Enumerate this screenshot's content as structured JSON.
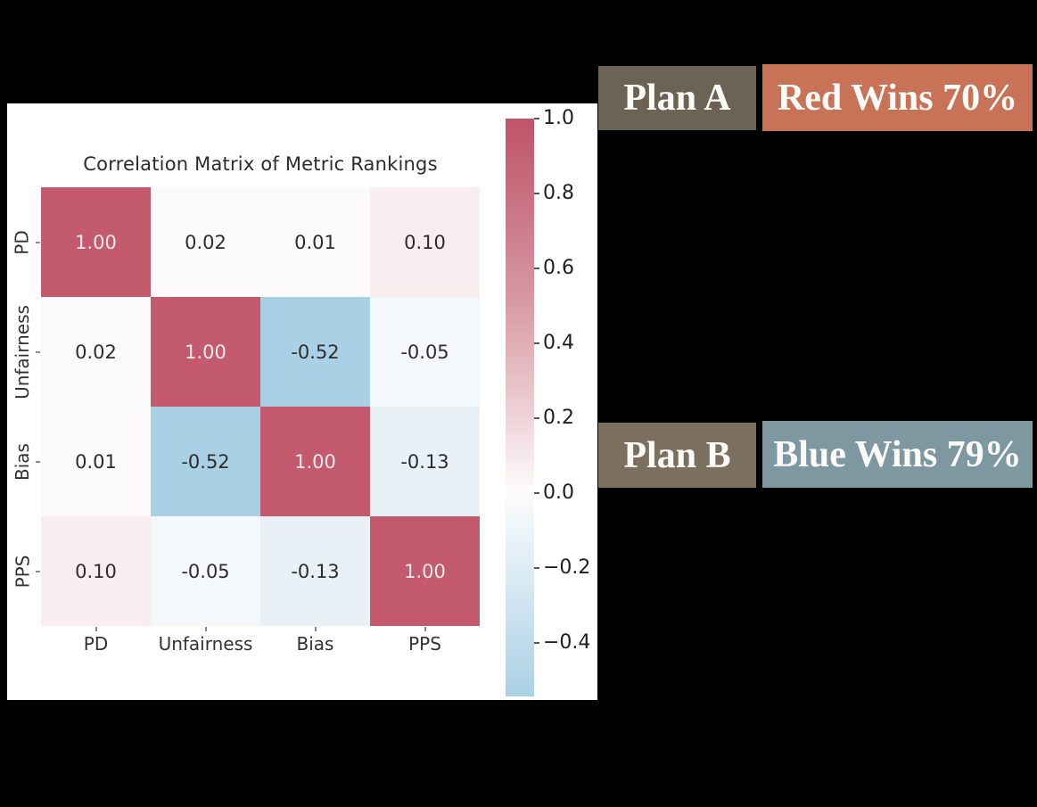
{
  "window": {
    "background": "#000000"
  },
  "figure": {
    "panel_bg": "#ffffff",
    "title": "Correlation Matrix of Metric Rankings"
  },
  "chart_data": {
    "type": "heatmap",
    "title": "Correlation Matrix of Metric Rankings",
    "x_categories": [
      "PD",
      "Unfairness",
      "Bias",
      "PPS"
    ],
    "y_categories": [
      "PD",
      "Unfairness",
      "Bias",
      "PPS"
    ],
    "matrix": [
      [
        1.0,
        0.02,
        0.01,
        0.1
      ],
      [
        0.02,
        1.0,
        -0.52,
        -0.05
      ],
      [
        0.01,
        -0.52,
        1.0,
        -0.13
      ],
      [
        0.1,
        -0.05,
        -0.13,
        1.0
      ]
    ],
    "cell_labels": [
      [
        "1.00",
        "0.02",
        "0.01",
        "0.10"
      ],
      [
        "0.02",
        "1.00",
        "-0.52",
        "-0.05"
      ],
      [
        "0.01",
        "-0.52",
        "1.00",
        "-0.13"
      ],
      [
        "0.10",
        "-0.05",
        "-0.13",
        "1.00"
      ]
    ],
    "cell_colors": [
      [
        "#c45a6e",
        "#fcfafa",
        "#fcfafa",
        "#f9edef"
      ],
      [
        "#fcfafa",
        "#c45a6e",
        "#a9d0e4",
        "#f4f8fb"
      ],
      [
        "#fcfafa",
        "#a9d0e4",
        "#c45a6e",
        "#e9f0f6"
      ],
      [
        "#f9edef",
        "#f4f8fb",
        "#e9f0f6",
        "#c45a6e"
      ]
    ],
    "diagonal_text_color": "#f5e9ec",
    "offdiag_text_color": "#2d2d2d",
    "grid": false,
    "colorbar": {
      "position": "right",
      "ticks": [
        "1.0",
        "0.8",
        "0.6",
        "0.4",
        "0.2",
        "0.0",
        "−0.2",
        "−0.4"
      ],
      "value_range": [
        -0.55,
        1.0
      ],
      "gradient_stops": [
        "#bf5468",
        "#ca7384",
        "#d89aa6",
        "#edced4",
        "#fdfcfc",
        "#ddecf4",
        "#bedbeb",
        "#abd1e5"
      ],
      "gradient_positions": [
        0,
        15,
        32,
        50,
        64.5,
        78,
        91,
        100
      ]
    }
  },
  "annotations": {
    "plan_a": {
      "label": "Plan A",
      "bg": "#6c6355"
    },
    "red_wins": {
      "label": "Red Wins 70%",
      "bg": "#c87257"
    },
    "plan_b": {
      "label": "Plan B",
      "bg": "#7b7060"
    },
    "blue_wins": {
      "label": "Blue Wins 79%",
      "bg": "#7e98a2"
    }
  }
}
